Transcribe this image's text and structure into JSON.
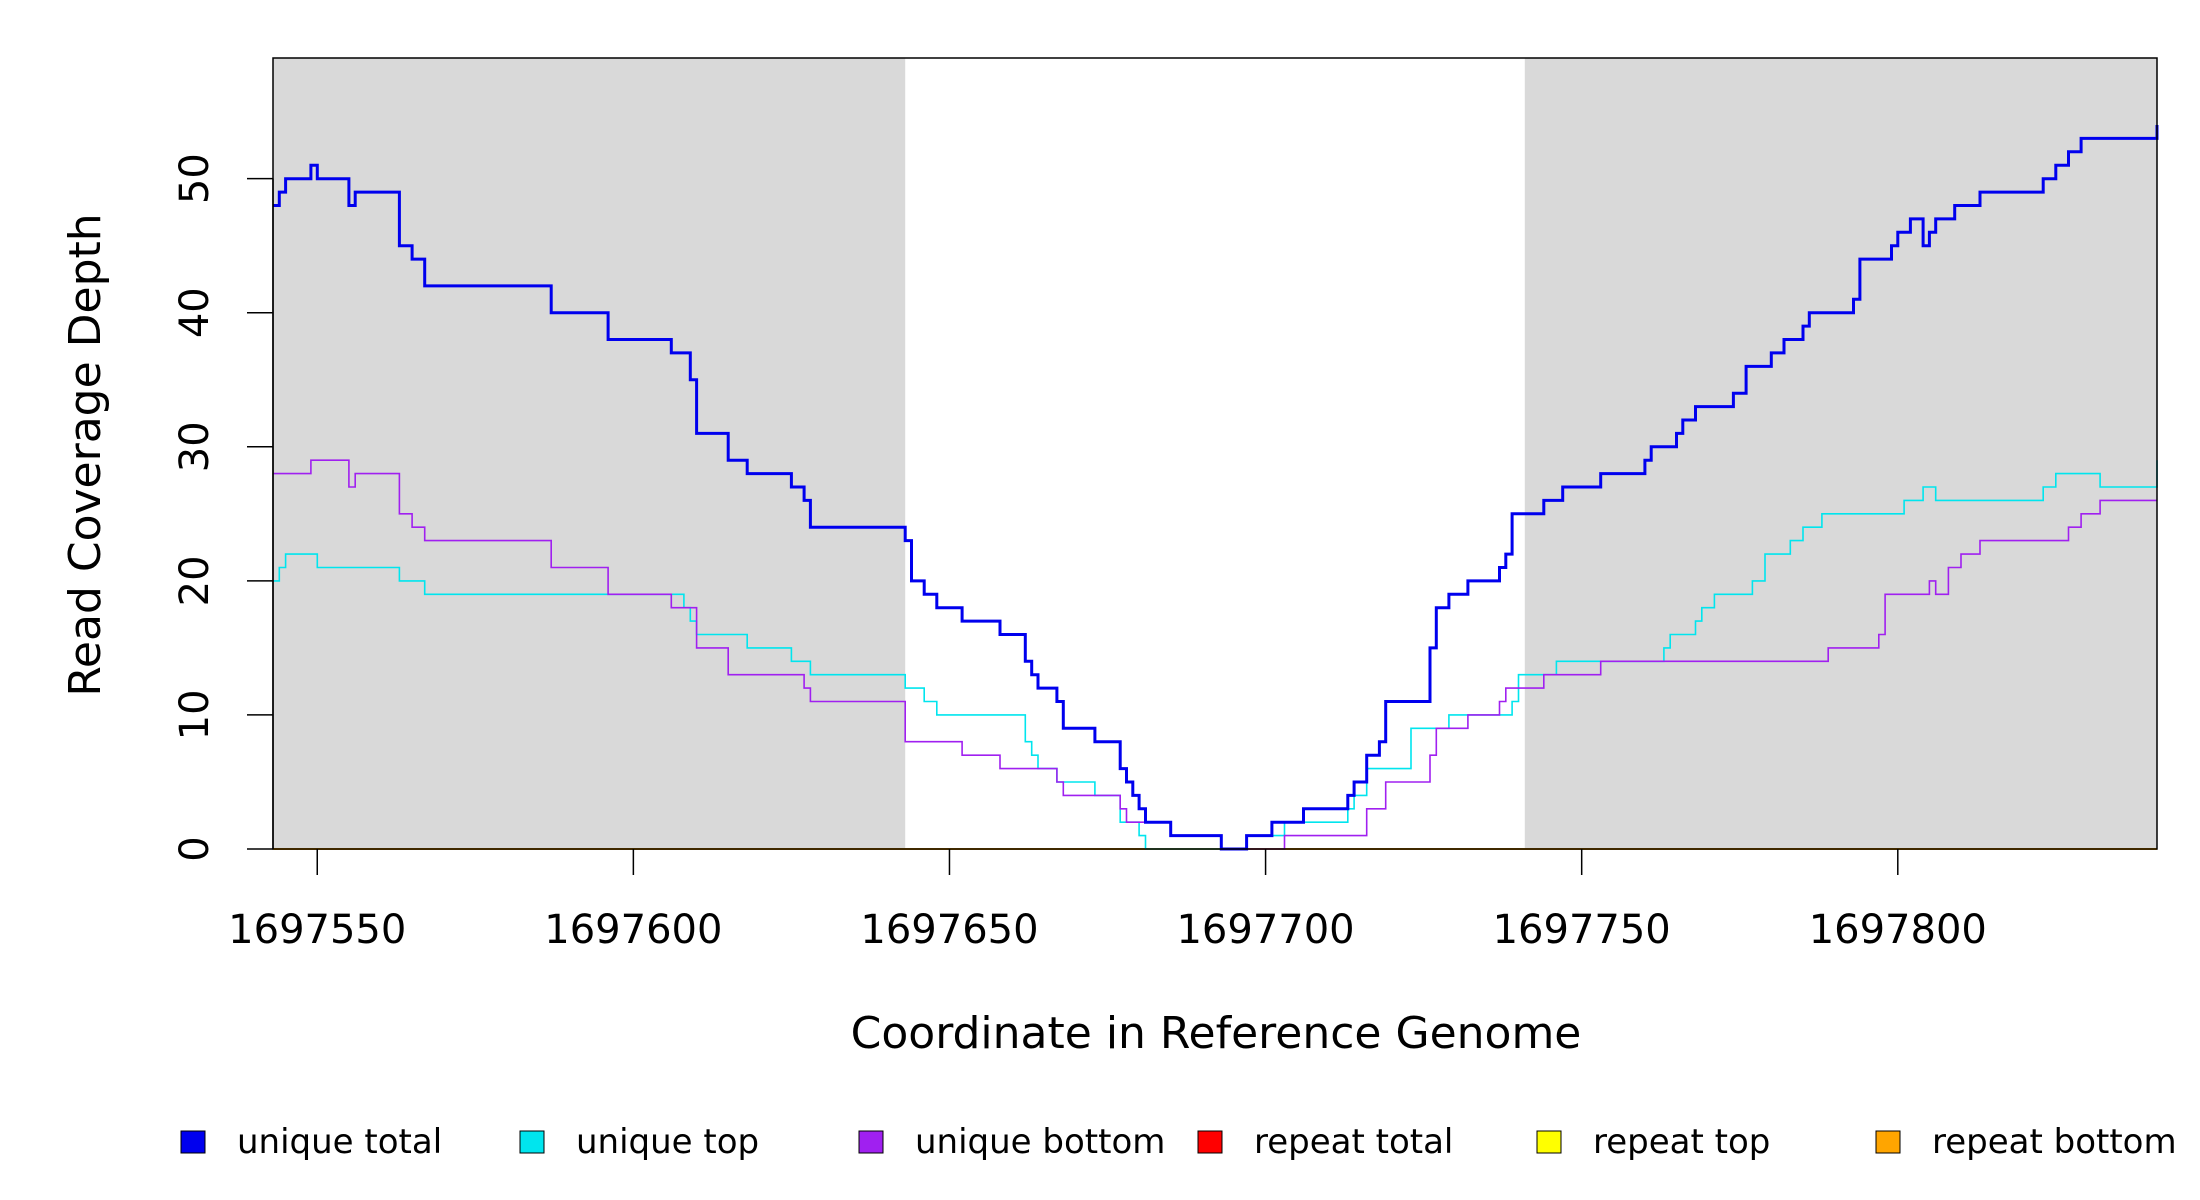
{
  "chart_data": {
    "type": "line",
    "xlabel": "Coordinate in Reference Genome",
    "ylabel": "Read Coverage Depth",
    "xlim": [
      1697543,
      1697841
    ],
    "ylim": [
      0,
      59
    ],
    "x_ticks": [
      1697550,
      1697600,
      1697650,
      1697700,
      1697750,
      1697800
    ],
    "x_tick_labels": [
      "1697550",
      "1697600",
      "1697650",
      "1697700",
      "1697750",
      "1697800"
    ],
    "y_ticks": [
      0,
      10,
      20,
      30,
      40,
      50
    ],
    "y_tick_labels": [
      "0",
      "10",
      "20",
      "30",
      "40",
      "50"
    ],
    "shaded_regions": [
      {
        "from": 1697543,
        "to": 1697643,
        "color": "#d9d9d9"
      },
      {
        "from": 1697741,
        "to": 1697841,
        "color": "#d9d9d9"
      }
    ],
    "legend": {
      "placement": "bottom"
    },
    "series": [
      {
        "name": "unique total",
        "color": "#0000ee",
        "width": 3,
        "points": [
          [
            1697543,
            48
          ],
          [
            1697544,
            49
          ],
          [
            1697545,
            50
          ],
          [
            1697549,
            51
          ],
          [
            1697550,
            50
          ],
          [
            1697555,
            48
          ],
          [
            1697556,
            49
          ],
          [
            1697563,
            45
          ],
          [
            1697565,
            44
          ],
          [
            1697567,
            42
          ],
          [
            1697587,
            40
          ],
          [
            1697596,
            38
          ],
          [
            1697606,
            37
          ],
          [
            1697609,
            35
          ],
          [
            1697610,
            31
          ],
          [
            1697615,
            29
          ],
          [
            1697618,
            28
          ],
          [
            1697625,
            27
          ],
          [
            1697627,
            26
          ],
          [
            1697628,
            24
          ],
          [
            1697643,
            23
          ],
          [
            1697644,
            20
          ],
          [
            1697646,
            19
          ],
          [
            1697648,
            18
          ],
          [
            1697652,
            17
          ],
          [
            1697658,
            16
          ],
          [
            1697662,
            14
          ],
          [
            1697663,
            13
          ],
          [
            1697664,
            12
          ],
          [
            1697667,
            11
          ],
          [
            1697668,
            9
          ],
          [
            1697673,
            8
          ],
          [
            1697677,
            6
          ],
          [
            1697678,
            5
          ],
          [
            1697679,
            4
          ],
          [
            1697680,
            3
          ],
          [
            1697681,
            2
          ],
          [
            1697685,
            1
          ],
          [
            1697693,
            0
          ],
          [
            1697697,
            1
          ],
          [
            1697701,
            2
          ],
          [
            1697706,
            3
          ],
          [
            1697713,
            4
          ],
          [
            1697714,
            5
          ],
          [
            1697716,
            7
          ],
          [
            1697718,
            8
          ],
          [
            1697719,
            11
          ],
          [
            1697726,
            15
          ],
          [
            1697727,
            18
          ],
          [
            1697729,
            19
          ],
          [
            1697732,
            20
          ],
          [
            1697737,
            21
          ],
          [
            1697738,
            22
          ],
          [
            1697739,
            25
          ],
          [
            1697744,
            26
          ],
          [
            1697747,
            27
          ],
          [
            1697753,
            28
          ],
          [
            1697760,
            29
          ],
          [
            1697761,
            30
          ],
          [
            1697765,
            31
          ],
          [
            1697766,
            32
          ],
          [
            1697768,
            33
          ],
          [
            1697774,
            34
          ],
          [
            1697776,
            36
          ],
          [
            1697780,
            37
          ],
          [
            1697782,
            38
          ],
          [
            1697785,
            39
          ],
          [
            1697786,
            40
          ],
          [
            1697793,
            41
          ],
          [
            1697794,
            44
          ],
          [
            1697799,
            45
          ],
          [
            1697800,
            46
          ],
          [
            1697802,
            47
          ],
          [
            1697804,
            45
          ],
          [
            1697805,
            46
          ],
          [
            1697806,
            47
          ],
          [
            1697809,
            48
          ],
          [
            1697813,
            49
          ],
          [
            1697823,
            50
          ],
          [
            1697825,
            51
          ],
          [
            1697827,
            52
          ],
          [
            1697829,
            53
          ],
          [
            1697841,
            54
          ]
        ]
      },
      {
        "name": "unique top",
        "color": "#00e5ee",
        "width": 1.6,
        "points": [
          [
            1697543,
            20
          ],
          [
            1697544,
            21
          ],
          [
            1697545,
            22
          ],
          [
            1697550,
            21
          ],
          [
            1697563,
            20
          ],
          [
            1697567,
            19
          ],
          [
            1697608,
            18
          ],
          [
            1697609,
            17
          ],
          [
            1697610,
            16
          ],
          [
            1697618,
            15
          ],
          [
            1697625,
            14
          ],
          [
            1697628,
            13
          ],
          [
            1697643,
            12
          ],
          [
            1697646,
            11
          ],
          [
            1697648,
            10
          ],
          [
            1697662,
            8
          ],
          [
            1697663,
            7
          ],
          [
            1697664,
            6
          ],
          [
            1697667,
            5
          ],
          [
            1697673,
            4
          ],
          [
            1697677,
            2
          ],
          [
            1697680,
            1
          ],
          [
            1697681,
            0
          ],
          [
            1697697,
            1
          ],
          [
            1697703,
            2
          ],
          [
            1697713,
            3
          ],
          [
            1697714,
            4
          ],
          [
            1697716,
            6
          ],
          [
            1697723,
            9
          ],
          [
            1697729,
            10
          ],
          [
            1697739,
            11
          ],
          [
            1697740,
            13
          ],
          [
            1697746,
            14
          ],
          [
            1697753,
            14
          ],
          [
            1697763,
            15
          ],
          [
            1697764,
            16
          ],
          [
            1697768,
            17
          ],
          [
            1697769,
            18
          ],
          [
            1697771,
            19
          ],
          [
            1697777,
            20
          ],
          [
            1697779,
            22
          ],
          [
            1697783,
            23
          ],
          [
            1697785,
            24
          ],
          [
            1697788,
            25
          ],
          [
            1697801,
            26
          ],
          [
            1697804,
            27
          ],
          [
            1697806,
            26
          ],
          [
            1697823,
            27
          ],
          [
            1697825,
            28
          ],
          [
            1697832,
            27
          ],
          [
            1697841,
            29
          ]
        ]
      },
      {
        "name": "unique bottom",
        "color": "#a020f0",
        "width": 1.6,
        "points": [
          [
            1697543,
            28
          ],
          [
            1697549,
            29
          ],
          [
            1697555,
            27
          ],
          [
            1697556,
            28
          ],
          [
            1697563,
            25
          ],
          [
            1697565,
            24
          ],
          [
            1697567,
            23
          ],
          [
            1697587,
            21
          ],
          [
            1697596,
            19
          ],
          [
            1697606,
            18
          ],
          [
            1697610,
            15
          ],
          [
            1697615,
            13
          ],
          [
            1697627,
            12
          ],
          [
            1697628,
            11
          ],
          [
            1697643,
            8
          ],
          [
            1697652,
            7
          ],
          [
            1697658,
            6
          ],
          [
            1697667,
            5
          ],
          [
            1697668,
            4
          ],
          [
            1697677,
            3
          ],
          [
            1697678,
            2
          ],
          [
            1697685,
            1
          ],
          [
            1697693,
            0
          ],
          [
            1697697,
            0
          ],
          [
            1697703,
            1
          ],
          [
            1697716,
            3
          ],
          [
            1697719,
            5
          ],
          [
            1697726,
            7
          ],
          [
            1697727,
            9
          ],
          [
            1697732,
            10
          ],
          [
            1697737,
            11
          ],
          [
            1697738,
            12
          ],
          [
            1697744,
            13
          ],
          [
            1697753,
            14
          ],
          [
            1697789,
            15
          ],
          [
            1697797,
            16
          ],
          [
            1697798,
            19
          ],
          [
            1697805,
            20
          ],
          [
            1697806,
            19
          ],
          [
            1697808,
            21
          ],
          [
            1697810,
            22
          ],
          [
            1697813,
            23
          ],
          [
            1697827,
            24
          ],
          [
            1697829,
            25
          ],
          [
            1697832,
            26
          ],
          [
            1697841,
            26
          ]
        ]
      },
      {
        "name": "repeat total",
        "color": "#ff0000",
        "width": 1.6,
        "points": [
          [
            1697543,
            0
          ],
          [
            1697841,
            0
          ]
        ]
      },
      {
        "name": "repeat top",
        "color": "#ffff00",
        "width": 1.6,
        "points": [
          [
            1697543,
            0
          ],
          [
            1697841,
            0
          ]
        ]
      },
      {
        "name": "repeat bottom",
        "color": "#ffa500",
        "width": 2,
        "points": [
          [
            1697543,
            0
          ],
          [
            1697841,
            0
          ]
        ]
      }
    ]
  }
}
